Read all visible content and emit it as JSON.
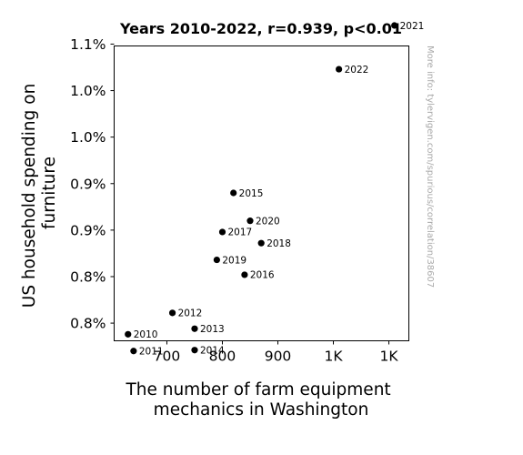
{
  "chart_data": {
    "type": "scatter",
    "title": "Years 2010-2022, r=0.939, p<0.01",
    "xlabel": [
      "The number of farm equipment",
      "mechanics in Washington"
    ],
    "ylabel": [
      "US household spending on",
      "furniture"
    ],
    "xlim": [
      605,
      1136
    ],
    "ylim": [
      0.00753,
      0.0107
    ],
    "x_ticks": [
      {
        "value": 700,
        "label": "700"
      },
      {
        "value": 800,
        "label": "800"
      },
      {
        "value": 900,
        "label": "900"
      },
      {
        "value": 1000,
        "label": "1K"
      },
      {
        "value": 1100,
        "label": "1K"
      }
    ],
    "y_ticks": [
      {
        "value": 0.00772,
        "label": "0.8%"
      },
      {
        "value": 0.00822,
        "label": "0.8%"
      },
      {
        "value": 0.00872,
        "label": "0.9%"
      },
      {
        "value": 0.00922,
        "label": "0.9%"
      },
      {
        "value": 0.00972,
        "label": "1.0%"
      },
      {
        "value": 0.01022,
        "label": "1.0%"
      },
      {
        "value": 0.01072,
        "label": "1.1%"
      }
    ],
    "points": [
      {
        "label": "2010",
        "x": 630,
        "y": 0.0076
      },
      {
        "label": "2011",
        "x": 640,
        "y": 0.00742
      },
      {
        "label": "2012",
        "x": 710,
        "y": 0.00783
      },
      {
        "label": "2013",
        "x": 750,
        "y": 0.00766
      },
      {
        "label": "2014",
        "x": 750,
        "y": 0.00743
      },
      {
        "label": "2015",
        "x": 820,
        "y": 0.00912
      },
      {
        "label": "2016",
        "x": 840,
        "y": 0.00824
      },
      {
        "label": "2017",
        "x": 800,
        "y": 0.0087
      },
      {
        "label": "2018",
        "x": 870,
        "y": 0.00858
      },
      {
        "label": "2019",
        "x": 790,
        "y": 0.0084
      },
      {
        "label": "2020",
        "x": 850,
        "y": 0.00882
      },
      {
        "label": "2021",
        "x": 1110,
        "y": 0.01092
      },
      {
        "label": "2022",
        "x": 1010,
        "y": 0.01045
      }
    ],
    "marker_color": "#000000",
    "grid": false
  },
  "watermark": "More info: tylervigen.com/spurious/correlation/38607"
}
